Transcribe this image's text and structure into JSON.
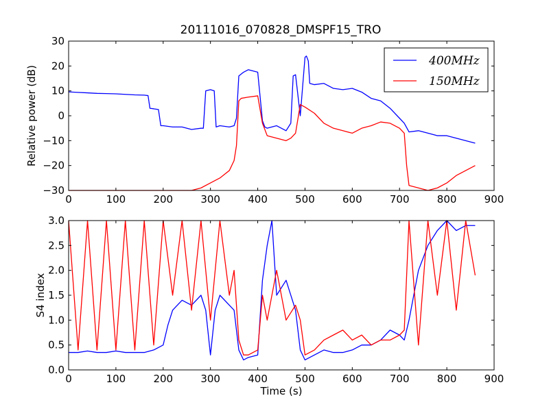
{
  "title": "20111016_070828_DMSPF15_TRO",
  "colors": {
    "400MHz": "#0000ff",
    "150MHz": "#ff0000"
  },
  "chart_data": [
    {
      "type": "line",
      "title": "20111016_070828_DMSPF15_TRO",
      "xlabel": "",
      "ylabel": "Relative power (dB)",
      "xlim": [
        0,
        900
      ],
      "ylim": [
        -30,
        30
      ],
      "xticks": [
        "0",
        "100",
        "200",
        "300",
        "400",
        "500",
        "600",
        "700",
        "800",
        "900"
      ],
      "yticks": [
        "−30",
        "−20",
        "−10",
        "0",
        "10",
        "20",
        "30"
      ],
      "legend": {
        "placement": "top-right",
        "entries": [
          "400MHz",
          "150MHz"
        ]
      },
      "series": [
        {
          "name": "400MHz",
          "color": "#0000ff",
          "x": [
            0,
            20,
            40,
            60,
            80,
            100,
            120,
            140,
            160,
            168,
            172,
            180,
            190,
            195,
            200,
            220,
            240,
            260,
            280,
            285,
            290,
            300,
            308,
            312,
            320,
            340,
            350,
            355,
            360,
            370,
            380,
            400,
            410,
            415,
            420,
            440,
            460,
            470,
            475,
            480,
            490,
            500,
            503,
            507,
            510,
            520,
            540,
            560,
            580,
            600,
            620,
            640,
            660,
            680,
            700,
            710,
            720,
            740,
            760,
            780,
            800,
            820,
            840,
            860
          ],
          "values": [
            9.6,
            9.4,
            9.2,
            9.0,
            8.9,
            8.8,
            8.6,
            8.4,
            8.3,
            8.1,
            3.0,
            2.8,
            2.5,
            -4.0,
            -4.0,
            -4.5,
            -4.5,
            -5.5,
            -5.0,
            -5.0,
            10.0,
            10.5,
            10.0,
            -4.5,
            -4.0,
            -4.5,
            -4.0,
            -1.0,
            16.0,
            17.5,
            18.5,
            17.5,
            -2.0,
            -4.5,
            -5.0,
            -4.0,
            -6.0,
            -3.0,
            16.0,
            16.5,
            0.0,
            23.5,
            24.0,
            22.0,
            13.0,
            12.5,
            13.0,
            11.0,
            10.5,
            11.0,
            9.5,
            7.0,
            6.0,
            3.0,
            -1.0,
            -3.0,
            -6.5,
            -6.0,
            -7.0,
            -8.0,
            -8.0,
            -9.0,
            -10.0,
            -11.0
          ]
        },
        {
          "name": "150MHz",
          "color": "#ff0000",
          "x": [
            0,
            20,
            40,
            60,
            80,
            100,
            120,
            140,
            160,
            180,
            200,
            220,
            240,
            260,
            280,
            300,
            320,
            340,
            350,
            355,
            360,
            365,
            380,
            400,
            410,
            420,
            440,
            460,
            470,
            480,
            490,
            500,
            520,
            540,
            560,
            580,
            600,
            620,
            640,
            660,
            680,
            700,
            710,
            715,
            720,
            740,
            760,
            780,
            800,
            820,
            840,
            860
          ],
          "values": [
            -30,
            -30,
            -30,
            -30,
            -30,
            -30,
            -30,
            -30,
            -30,
            -30,
            -30,
            -30,
            -30,
            -30,
            -29,
            -27,
            -25,
            -22,
            -18,
            -12,
            6.0,
            7.0,
            7.5,
            8.0,
            -3.0,
            -8.0,
            -9.0,
            -10.0,
            -9.0,
            -7.0,
            4.5,
            3.5,
            1.0,
            -3.0,
            -5.0,
            -6.0,
            -7.0,
            -5.0,
            -4.0,
            -2.5,
            -3.0,
            -5.0,
            -7.0,
            -20.0,
            -28.0,
            -29.0,
            -30.0,
            -29.0,
            -27.0,
            -24.0,
            -22.0,
            -20.0
          ]
        }
      ]
    },
    {
      "type": "line",
      "title": "",
      "xlabel": "Time (s)",
      "ylabel": "S4 index",
      "xlim": [
        0,
        900
      ],
      "ylim": [
        0,
        3
      ],
      "xticks": [
        "0",
        "100",
        "200",
        "300",
        "400",
        "500",
        "600",
        "700",
        "800",
        "900"
      ],
      "yticks": [
        "0.0",
        "0.5",
        "1.0",
        "1.5",
        "2.0",
        "2.5",
        "3.0"
      ],
      "series": [
        {
          "name": "400MHz",
          "color": "#0000ff",
          "x": [
            0,
            20,
            40,
            60,
            80,
            100,
            120,
            140,
            160,
            180,
            200,
            210,
            220,
            240,
            260,
            280,
            290,
            300,
            310,
            320,
            340,
            350,
            360,
            370,
            380,
            400,
            410,
            420,
            430,
            440,
            460,
            480,
            490,
            500,
            520,
            540,
            560,
            580,
            600,
            620,
            640,
            660,
            680,
            700,
            710,
            720,
            740,
            760,
            780,
            800,
            820,
            840,
            860
          ],
          "values": [
            0.35,
            0.35,
            0.38,
            0.35,
            0.35,
            0.38,
            0.35,
            0.35,
            0.35,
            0.4,
            0.5,
            0.9,
            1.2,
            1.4,
            1.3,
            1.5,
            1.2,
            0.3,
            1.2,
            1.5,
            1.3,
            1.2,
            0.4,
            0.2,
            0.25,
            0.3,
            1.8,
            2.5,
            3.0,
            1.5,
            1.8,
            1.2,
            0.4,
            0.2,
            0.3,
            0.4,
            0.35,
            0.35,
            0.4,
            0.5,
            0.5,
            0.6,
            0.8,
            0.7,
            0.6,
            1.0,
            2.0,
            2.5,
            2.8,
            3.0,
            2.8,
            2.9,
            2.9
          ]
        },
        {
          "name": "150MHz",
          "color": "#ff0000",
          "x": [
            0,
            20,
            40,
            60,
            80,
            100,
            120,
            140,
            160,
            180,
            200,
            220,
            240,
            260,
            280,
            300,
            320,
            340,
            350,
            360,
            370,
            380,
            400,
            410,
            420,
            440,
            460,
            480,
            490,
            500,
            520,
            540,
            560,
            580,
            600,
            620,
            640,
            660,
            680,
            700,
            710,
            720,
            740,
            760,
            780,
            800,
            820,
            840,
            860
          ],
          "values": [
            3.0,
            0.4,
            3.0,
            0.4,
            3.0,
            0.4,
            3.0,
            0.4,
            3.0,
            0.5,
            3.0,
            1.5,
            3.0,
            1.2,
            3.0,
            1.0,
            3.0,
            1.5,
            2.0,
            0.6,
            0.3,
            0.3,
            0.4,
            1.5,
            1.0,
            2.0,
            1.0,
            1.3,
            1.0,
            0.3,
            0.4,
            0.6,
            0.7,
            0.8,
            0.6,
            0.7,
            0.5,
            0.6,
            0.6,
            0.7,
            0.8,
            3.0,
            0.5,
            3.0,
            1.5,
            3.0,
            1.2,
            3.0,
            1.9
          ]
        }
      ]
    }
  ]
}
